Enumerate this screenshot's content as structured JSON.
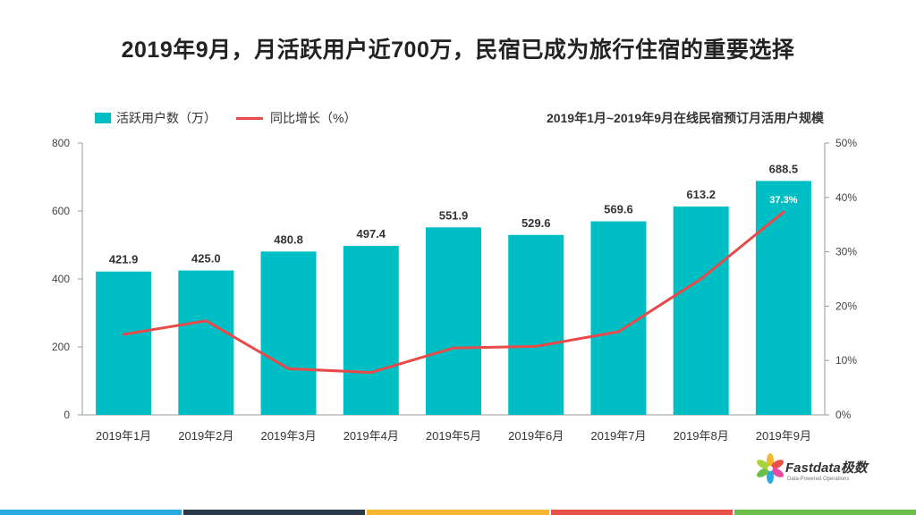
{
  "title": "2019年9月，月活跃用户近700万，民宿已成为旅行住宿的重要选择",
  "subtitle": "2019年1月~2019年9月在线民宿预订月活用户规模",
  "logo": {
    "name": "Fastdata极数",
    "tagline": "Data-Powered Operations"
  },
  "colors": {
    "bar": "#00BFC4",
    "line": "#E84A4A",
    "footer": [
      "#29A9E1",
      "#2B3A4A",
      "#F5B52E",
      "#E8514A",
      "#6CC04A"
    ]
  },
  "chart_data": {
    "type": "bar",
    "categories": [
      "2019年1月",
      "2019年2月",
      "2019年3月",
      "2019年4月",
      "2019年5月",
      "2019年6月",
      "2019年7月",
      "2019年8月",
      "2019年9月"
    ],
    "series": [
      {
        "name": "活跃用户数（万）",
        "type": "bar",
        "axis": "left",
        "values": [
          421.9,
          425.0,
          480.8,
          497.4,
          551.9,
          529.6,
          569.6,
          613.2,
          688.5
        ],
        "labels": [
          "421.9",
          "425.0",
          "480.8",
          "497.4",
          "551.9",
          "529.6",
          "569.6",
          "613.2",
          "688.5"
        ]
      },
      {
        "name": "同比增长（%）",
        "type": "line",
        "axis": "right",
        "values": [
          14.8,
          17.3,
          8.5,
          7.8,
          12.3,
          12.6,
          15.3,
          25.0,
          37.3
        ],
        "labels": [
          "",
          "",
          "",
          "",
          "",
          "",
          "",
          "",
          "37.3%"
        ]
      }
    ],
    "y_left": {
      "min": 0,
      "max": 800,
      "ticks": [
        "0",
        "200",
        "400",
        "600",
        "800"
      ]
    },
    "y_right": {
      "min": 0,
      "max": 50,
      "ticks": [
        "0%",
        "10%",
        "20%",
        "30%",
        "40%",
        "50%"
      ]
    },
    "legend_position": "top-left",
    "grid": false
  }
}
